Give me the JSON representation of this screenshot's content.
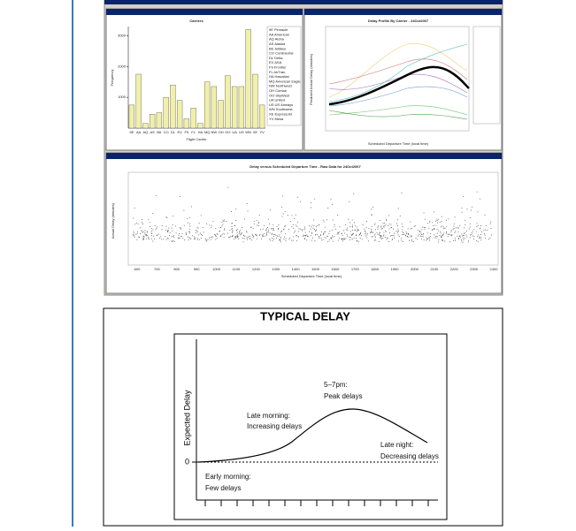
{
  "screenshot": {
    "histogram": {
      "title": "Carriers",
      "y_label": "Frequency",
      "x_label": "Flight Carrier",
      "categories": [
        "9E",
        "AA",
        "AQ",
        "AS",
        "B6",
        "CO",
        "DL",
        "EV",
        "F9",
        "FL",
        "HA",
        "MQ",
        "NW",
        "OH",
        "OO",
        "UA",
        "US",
        "WN",
        "XE",
        "YV"
      ],
      "values": [
        750,
        1750,
        150,
        450,
        500,
        1000,
        1400,
        900,
        300,
        650,
        150,
        1500,
        1350,
        900,
        1700,
        1350,
        1350,
        3200,
        1750,
        750
      ],
      "ylim": [
        0,
        3300
      ],
      "yticks": [
        1000,
        2000,
        3000
      ],
      "legend": [
        "9E Pinnacle",
        "AA American",
        "AQ Aloha",
        "AS Alaska",
        "B6 JetBlue",
        "CO Continental",
        "DL Delta",
        "EV ASA",
        "F9 Frontier",
        "FL AirTran",
        "HA Hawaiian",
        "MQ American Eagle",
        "NW Northwest",
        "OH Comair",
        "OO SkyWest",
        "UA United",
        "US US Airways",
        "WN Southwest",
        "XE ExpressJet",
        "YV Mesa"
      ]
    },
    "profile": {
      "title": "Delay Profile By Carrier - 24Oct2007",
      "y_label": "Predicted Actual Delay (minutes)",
      "x_label": "Scheduled Departure Time (local time)"
    },
    "scatter": {
      "title": "Delay versus Scheduled Departure Time - Raw Data for 24Oct2007",
      "y_label": "Actual Delay (minutes)",
      "x_label": "Scheduled Departure Time (local time)",
      "x_tick_labels": [
        "600",
        "700",
        "800",
        "900",
        "1000",
        "1100",
        "1200",
        "1300",
        "1400",
        "1500",
        "1600",
        "1700",
        "1800",
        "1900",
        "2000",
        "2100",
        "2200",
        "2300",
        "2400"
      ]
    }
  },
  "diagram": {
    "title": "TYPICAL DELAY",
    "y_label": "Expected Delay",
    "zero_label": "0",
    "annotations": [
      {
        "line1": "5–7pm:",
        "line2": "Peak delays"
      },
      {
        "line1": "Late morning:",
        "line2": "Increasing delays"
      },
      {
        "line1": "Late night:",
        "line2": "Decreasing delays"
      },
      {
        "line1": "Early morning:",
        "line2": "Few delays"
      }
    ]
  }
}
